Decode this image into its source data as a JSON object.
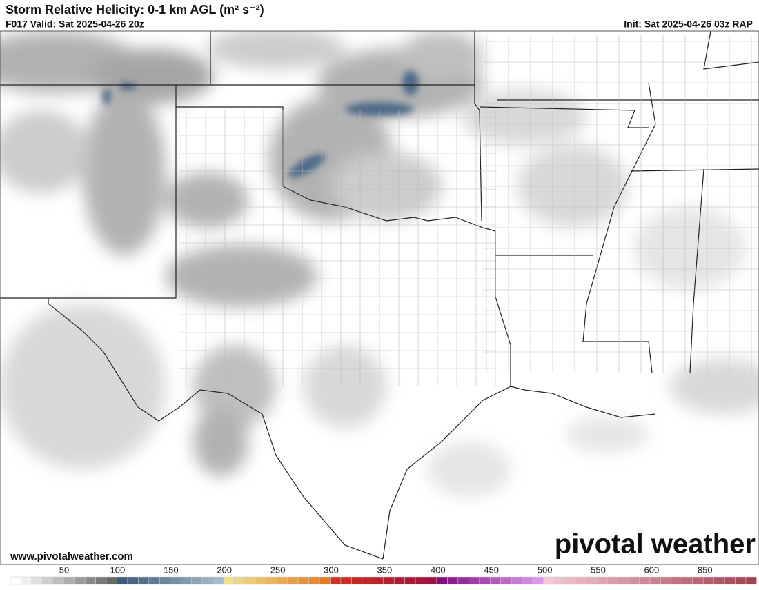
{
  "header": {
    "title": "Storm Relative Helicity: 0-1 km AGL (m² s⁻²)",
    "valid": "F017 Valid: Sat 2025-04-26 20z",
    "init": "Init: Sat 2025-04-26 03z RAP"
  },
  "map": {
    "url": "www.pivotalweather.com",
    "logo": "pivotal weather"
  },
  "colorbar": {
    "labels": [
      50,
      100,
      150,
      200,
      250,
      300,
      350,
      400,
      450,
      500,
      550,
      600,
      850
    ]
  }
}
